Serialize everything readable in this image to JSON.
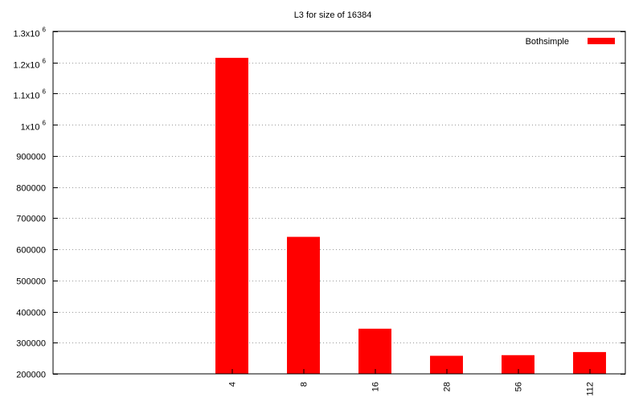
{
  "chart_data": {
    "type": "bar",
    "title": "L3 for size of 16384",
    "xlabel": "",
    "ylabel": "",
    "categories": [
      "4",
      "8",
      "16",
      "28",
      "56",
      "112"
    ],
    "series": [
      {
        "name": "Bothsimple",
        "color": "#ff0000",
        "values": [
          1215000,
          640000,
          345000,
          258000,
          260000,
          270000
        ]
      }
    ],
    "ylim": [
      200000,
      1300000
    ],
    "y_ticks": [
      200000,
      300000,
      400000,
      500000,
      600000,
      700000,
      800000,
      900000,
      1000000,
      1100000,
      1200000,
      1300000
    ],
    "y_tick_labels": [
      {
        "text": "200000"
      },
      {
        "text": "300000"
      },
      {
        "text": "400000"
      },
      {
        "text": "500000"
      },
      {
        "text": "600000"
      },
      {
        "text": "700000"
      },
      {
        "text": "800000"
      },
      {
        "text": "900000"
      },
      {
        "text": "1x10",
        "exponent": "6"
      },
      {
        "text": "1.1x10",
        "exponent": "6"
      },
      {
        "text": "1.2x10",
        "exponent": "6"
      },
      {
        "text": "1.3x10",
        "exponent": "6"
      }
    ],
    "x_category_slots": 8,
    "x_category_start_slot": 2,
    "grid": true,
    "legend_position": "top-right"
  }
}
